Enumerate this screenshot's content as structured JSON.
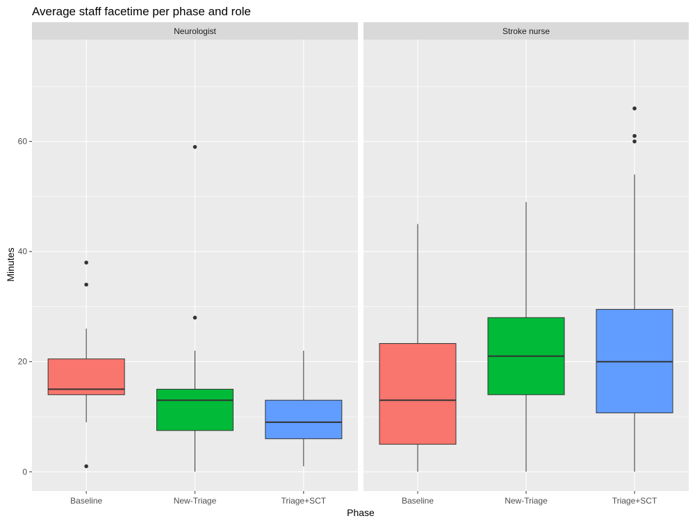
{
  "chart_data": {
    "type": "boxplot",
    "title": "Average staff facetime per phase and role",
    "xlabel": "Phase",
    "ylabel": "Minutes",
    "categories": [
      "Baseline",
      "New-Triage",
      "Triage+SCT"
    ],
    "ylim": [
      -3.5,
      78.5
    ],
    "yticks": [
      0,
      20,
      40,
      60
    ],
    "grid": true,
    "legend": "none",
    "colors": {
      "Baseline": "#F8766D",
      "New-Triage": "#00BA38",
      "Triage+SCT": "#619CFF"
    },
    "facets": [
      {
        "label": "Neurologist",
        "boxes": [
          {
            "category": "Baseline",
            "lower_whisker": 9,
            "q1": 14,
            "median": 15,
            "q3": 20.5,
            "upper_whisker": 26,
            "outliers": [
              38,
              34,
              1
            ]
          },
          {
            "category": "New-Triage",
            "lower_whisker": 0,
            "q1": 7.5,
            "median": 13,
            "q3": 15,
            "upper_whisker": 22,
            "outliers": [
              59,
              28
            ]
          },
          {
            "category": "Triage+SCT",
            "lower_whisker": 1,
            "q1": 6,
            "median": 9,
            "q3": 13,
            "upper_whisker": 22,
            "outliers": []
          }
        ]
      },
      {
        "label": "Stroke nurse",
        "boxes": [
          {
            "category": "Baseline",
            "lower_whisker": 0,
            "q1": 5,
            "median": 13,
            "q3": 23.3,
            "upper_whisker": 45,
            "outliers": []
          },
          {
            "category": "New-Triage",
            "lower_whisker": 0,
            "q1": 14,
            "median": 21,
            "q3": 28,
            "upper_whisker": 49,
            "outliers": []
          },
          {
            "category": "Triage+SCT",
            "lower_whisker": 0,
            "q1": 10.7,
            "median": 20,
            "q3": 29.5,
            "upper_whisker": 54,
            "outliers": [
              66,
              61,
              60
            ]
          }
        ]
      }
    ]
  }
}
